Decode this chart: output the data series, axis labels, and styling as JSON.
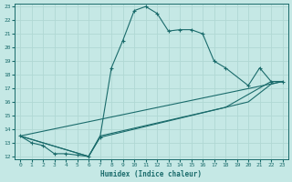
{
  "xlabel": "Humidex (Indice chaleur)",
  "xlim": [
    -0.5,
    23.5
  ],
  "ylim": [
    11.8,
    23.2
  ],
  "yticks": [
    12,
    13,
    14,
    15,
    16,
    17,
    18,
    19,
    20,
    21,
    22,
    23
  ],
  "xticks": [
    0,
    1,
    2,
    3,
    4,
    5,
    6,
    7,
    8,
    9,
    10,
    11,
    12,
    13,
    14,
    15,
    16,
    17,
    18,
    19,
    20,
    21,
    22,
    23
  ],
  "bg_color": "#c5e8e5",
  "line_color": "#1a6b6b",
  "grid_color": "#b0d8d4",
  "lines": [
    {
      "x": [
        0,
        1,
        2,
        3,
        4,
        5,
        6,
        7,
        8,
        9,
        10,
        11,
        12,
        13,
        14,
        15,
        16,
        17,
        18,
        20,
        21,
        22,
        23
      ],
      "y": [
        13.5,
        13.0,
        12.8,
        12.2,
        12.2,
        12.1,
        12.0,
        13.4,
        18.5,
        20.5,
        22.7,
        23.0,
        22.5,
        21.2,
        21.3,
        21.3,
        21.0,
        19.0,
        18.5,
        17.2,
        18.5,
        17.5,
        17.5
      ],
      "marker": "+"
    },
    {
      "x": [
        0,
        6,
        7,
        18,
        22,
        23
      ],
      "y": [
        13.5,
        12.0,
        13.5,
        15.6,
        17.5,
        17.5
      ],
      "marker": null
    },
    {
      "x": [
        0,
        6,
        7,
        20,
        22,
        23
      ],
      "y": [
        13.5,
        12.0,
        13.4,
        16.0,
        17.3,
        17.5
      ],
      "marker": null
    },
    {
      "x": [
        0,
        23
      ],
      "y": [
        13.5,
        17.5
      ],
      "marker": null
    }
  ]
}
